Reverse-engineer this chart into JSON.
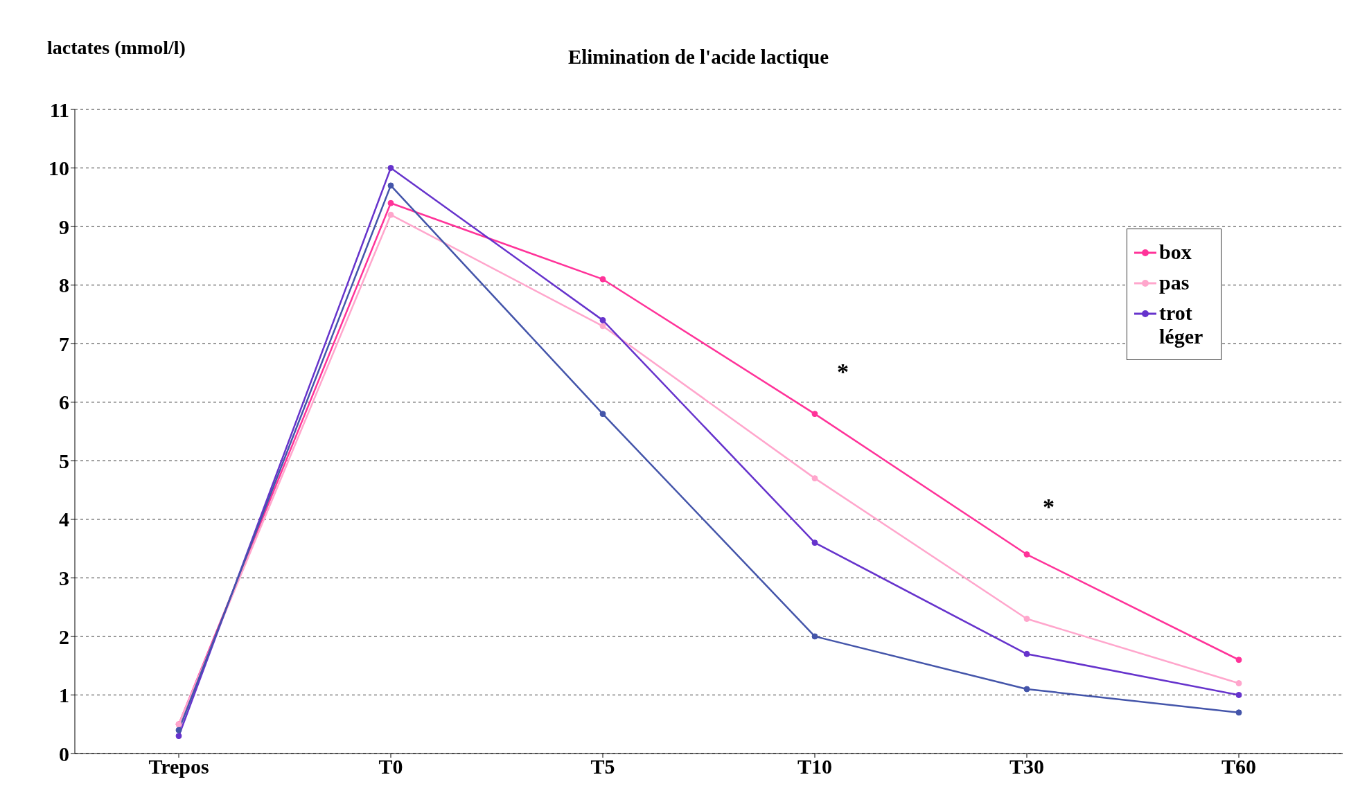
{
  "chart_data": {
    "type": "line",
    "title": "Elimination de l'acide lactique",
    "ylabel": "lactates (mmol/l)",
    "categories": [
      "Trepos",
      "T0",
      "T5",
      "T10",
      "T30",
      "T60"
    ],
    "series": [
      {
        "name": "box",
        "color": "#ff3399",
        "values": [
          0.5,
          9.4,
          8.1,
          5.8,
          3.4,
          1.6
        ]
      },
      {
        "name": "pas",
        "color": "#ffa6cc",
        "values": [
          0.5,
          9.2,
          7.3,
          4.7,
          2.3,
          1.2
        ]
      },
      {
        "name": "trot léger",
        "color": "#6633cc",
        "values": [
          0.3,
          10.0,
          7.4,
          3.6,
          1.7,
          1.0
        ]
      },
      {
        "color": "#4455aa",
        "values": [
          0.4,
          9.7,
          5.8,
          2.0,
          1.1,
          0.7
        ]
      }
    ],
    "ylim": [
      0,
      11
    ],
    "yticks": [
      0,
      1,
      2,
      3,
      4,
      5,
      6,
      7,
      8,
      9,
      10,
      11
    ],
    "grid": "y",
    "legend": "top right",
    "marker": "circle",
    "line_style": "solid",
    "annotations": [
      "*",
      "*"
    ]
  }
}
